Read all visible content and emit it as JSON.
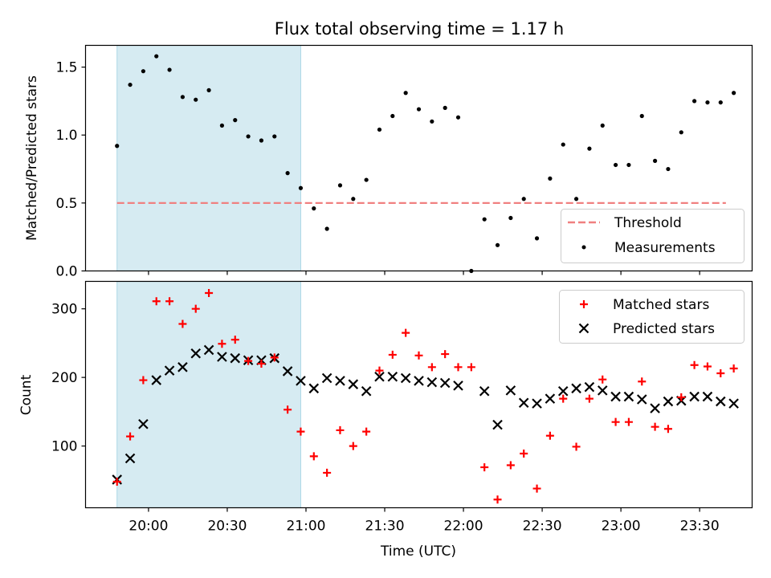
{
  "colors": {
    "shade": "#add8e6",
    "threshold": "#f08080",
    "measurement": "#000000",
    "matched": "#ff0000",
    "predicted": "#000000"
  },
  "chart_data": [
    {
      "type": "scatter",
      "title": "Flux total observing time = 1.17 h",
      "ylabel": "Matched/Predicted stars",
      "xlim": [
        "19:36",
        "23:50"
      ],
      "ylim": [
        0,
        1.66
      ],
      "yticks": [
        "0.0",
        "0.5",
        "1.0",
        "1.5"
      ],
      "shaded_region": [
        "19:48",
        "20:58"
      ],
      "threshold": {
        "name": "Threshold",
        "value": 0.5,
        "x_range": [
          "19:48",
          "23:40"
        ]
      },
      "legend": {
        "placement": "lower right",
        "entries": [
          "Threshold",
          "Measurements"
        ]
      },
      "series": [
        {
          "name": "Measurements",
          "x": [
            "19:48",
            "19:53",
            "19:58",
            "20:03",
            "20:08",
            "20:13",
            "20:18",
            "20:23",
            "20:28",
            "20:33",
            "20:38",
            "20:43",
            "20:48",
            "20:53",
            "20:58",
            "21:03",
            "21:08",
            "21:13",
            "21:18",
            "21:23",
            "21:28",
            "21:33",
            "21:38",
            "21:43",
            "21:48",
            "21:53",
            "21:58",
            "22:03",
            "22:08",
            "22:13",
            "22:18",
            "22:23",
            "22:28",
            "22:33",
            "22:38",
            "22:43",
            "22:48",
            "22:53",
            "22:58",
            "23:03",
            "23:08",
            "23:13",
            "23:18",
            "23:23",
            "23:28",
            "23:33",
            "23:38",
            "23:43"
          ],
          "y": [
            0.92,
            1.37,
            1.47,
            1.58,
            1.48,
            1.28,
            1.26,
            1.33,
            1.07,
            1.11,
            0.99,
            0.96,
            0.99,
            0.72,
            0.61,
            0.46,
            0.31,
            0.63,
            0.53,
            0.67,
            1.04,
            1.14,
            1.31,
            1.19,
            1.1,
            1.2,
            1.13,
            0.0,
            0.38,
            0.19,
            0.39,
            0.53,
            0.24,
            0.68,
            0.93,
            0.53,
            0.9,
            1.07,
            0.78,
            0.78,
            1.14,
            0.81,
            0.75,
            1.02,
            1.25,
            1.24,
            1.24,
            1.31
          ]
        }
      ]
    },
    {
      "type": "scatter",
      "xlabel": "Time (UTC)",
      "ylabel": "Count",
      "xlim": [
        "19:36",
        "23:50"
      ],
      "ylim": [
        10,
        340
      ],
      "yticks": [
        "100",
        "200",
        "300"
      ],
      "xticks": [
        "20:00",
        "20:30",
        "21:00",
        "21:30",
        "22:00",
        "22:30",
        "23:00",
        "23:30"
      ],
      "shaded_region": [
        "19:48",
        "20:58"
      ],
      "legend": {
        "placement": "upper right",
        "entries": [
          "Matched stars",
          "Predicted stars"
        ]
      },
      "series": [
        {
          "name": "Matched stars",
          "x": [
            "19:48",
            "19:53",
            "19:58",
            "20:03",
            "20:08",
            "20:13",
            "20:18",
            "20:23",
            "20:28",
            "20:33",
            "20:38",
            "20:43",
            "20:48",
            "20:53",
            "20:58",
            "21:03",
            "21:08",
            "21:13",
            "21:18",
            "21:23",
            "21:28",
            "21:33",
            "21:38",
            "21:43",
            "21:48",
            "21:53",
            "21:58",
            "22:03",
            "22:08",
            "22:13",
            "22:18",
            "22:23",
            "22:28",
            "22:33",
            "22:38",
            "22:43",
            "22:48",
            "22:53",
            "22:58",
            "23:03",
            "23:08",
            "23:13",
            "23:18",
            "23:23",
            "23:28",
            "23:33",
            "23:38",
            "23:43"
          ],
          "y": [
            48,
            114,
            196,
            311,
            311,
            278,
            300,
            323,
            249,
            255,
            224,
            220,
            229,
            153,
            121,
            85,
            61,
            123,
            100,
            121,
            210,
            233,
            265,
            232,
            215,
            234,
            215,
            215,
            69,
            22,
            72,
            89,
            38,
            115,
            169,
            99,
            169,
            197,
            135,
            135,
            194,
            128,
            125,
            171,
            218,
            216,
            206,
            213
          ]
        },
        {
          "name": "Predicted stars",
          "x": [
            "19:48",
            "19:53",
            "19:58",
            "20:03",
            "20:08",
            "20:13",
            "20:18",
            "20:23",
            "20:28",
            "20:33",
            "20:38",
            "20:43",
            "20:48",
            "20:53",
            "20:58",
            "21:03",
            "21:08",
            "21:13",
            "21:18",
            "21:23",
            "21:28",
            "21:33",
            "21:38",
            "21:43",
            "21:48",
            "21:53",
            "21:58",
            "22:08",
            "22:13",
            "22:18",
            "22:23",
            "22:28",
            "22:33",
            "22:38",
            "22:43",
            "22:48",
            "22:53",
            "22:58",
            "23:03",
            "23:08",
            "23:13",
            "23:18",
            "23:23",
            "23:28",
            "23:33",
            "23:38",
            "23:43"
          ],
          "y": [
            51,
            82,
            132,
            196,
            210,
            215,
            235,
            240,
            230,
            228,
            225,
            225,
            228,
            209,
            195,
            184,
            199,
            195,
            190,
            180,
            201,
            201,
            199,
            195,
            193,
            192,
            188,
            180,
            131,
            181,
            163,
            162,
            169,
            180,
            184,
            186,
            181,
            172,
            172,
            168,
            155,
            165,
            166,
            172,
            172,
            165,
            162
          ]
        }
      ]
    }
  ]
}
